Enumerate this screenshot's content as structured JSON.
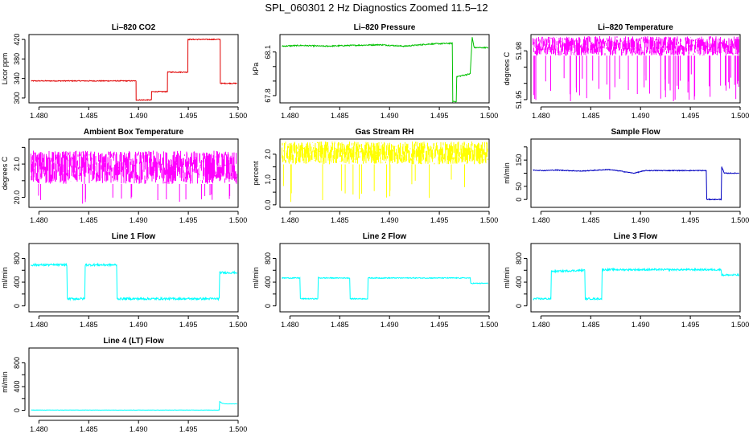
{
  "title": "SPL_060301  2 Hz Diagnostics Zoomed 11.5–12",
  "chart_data": [
    {
      "type": "line",
      "title": "Li–820 CO2",
      "xlabel": "",
      "ylabel": "Licor ppm",
      "color": "#e00000",
      "xlim": [
        1.479,
        1.5
      ],
      "ylim": [
        290,
        430
      ],
      "xticks": [
        1.48,
        1.485,
        1.49,
        1.495,
        1.5
      ],
      "xticklabels": [
        "1.480",
        "1.485",
        "1.490",
        "1.495",
        "1.500"
      ],
      "yticks": [
        300,
        340,
        380,
        420
      ],
      "yticklabels": [
        "300",
        "340",
        "380",
        "420"
      ],
      "noise": 0.9,
      "x": [
        1.4792,
        1.48975,
        1.48976,
        1.4913,
        1.49131,
        1.4929,
        1.49291,
        1.49495,
        1.49496,
        1.4982,
        1.49821,
        1.4999
      ],
      "y": [
        335,
        335,
        296,
        296,
        313,
        313,
        353,
        353,
        420,
        420,
        330,
        330
      ]
    },
    {
      "type": "line",
      "title": "Li–820 Pressure",
      "xlabel": "",
      "ylabel": "kPa",
      "color": "#00c000",
      "xlim": [
        1.479,
        1.5
      ],
      "ylim": [
        67.75,
        68.22
      ],
      "xticks": [
        1.48,
        1.485,
        1.49,
        1.495,
        1.5
      ],
      "xticklabels": [
        "1.480",
        "1.485",
        "1.490",
        "1.495",
        "1.500"
      ],
      "yticks": [
        67.8,
        67.9,
        68.0,
        68.1
      ],
      "yticklabels": [
        "67.8",
        "",
        "",
        "68.1"
      ],
      "noise": 0.004,
      "x": [
        1.4792,
        1.481,
        1.4835,
        1.486,
        1.489,
        1.4915,
        1.494,
        1.4963,
        1.49635,
        1.4967,
        1.49675,
        1.4981,
        1.4983,
        1.4985,
        1.4999
      ],
      "y": [
        68.14,
        68.145,
        68.14,
        68.145,
        68.15,
        68.14,
        68.155,
        68.16,
        67.76,
        67.76,
        67.93,
        67.95,
        68.2,
        68.13,
        68.13
      ]
    },
    {
      "type": "noise-band",
      "title": "Li–820 Temperature",
      "xlabel": "",
      "ylabel": "degrees C",
      "color": "#ff00ff",
      "xlim": [
        1.479,
        1.5
      ],
      "ylim": [
        51.948,
        51.99
      ],
      "xticks": [
        1.48,
        1.485,
        1.49,
        1.495,
        1.5
      ],
      "xticklabels": [
        "1.480",
        "1.485",
        "1.490",
        "1.495",
        "1.500"
      ],
      "yticks": [
        51.95,
        51.96,
        51.97,
        51.98
      ],
      "yticklabels": [
        "51.95",
        "",
        "",
        "51.98"
      ],
      "range": [
        1.4792,
        1.4999
      ],
      "band": [
        51.977,
        51.989
      ],
      "spike_to": 51.949,
      "spikes": 55
    },
    {
      "type": "noise-band",
      "title": "Ambient Box Temperature",
      "xlabel": "",
      "ylabel": "degrees C",
      "color": "#ff00ff",
      "xlim": [
        1.479,
        1.5
      ],
      "ylim": [
        19.7,
        21.75
      ],
      "xticks": [
        1.48,
        1.485,
        1.49,
        1.495,
        1.5
      ],
      "xticklabels": [
        "1.480",
        "1.485",
        "1.490",
        "1.495",
        "1.500"
      ],
      "yticks": [
        20.0,
        20.5,
        21.0,
        21.5
      ],
      "yticklabels": [
        "20.0",
        "",
        "21.0",
        ""
      ],
      "range": [
        1.4792,
        1.4999
      ],
      "band": [
        20.4,
        21.4
      ],
      "spike_to": 19.8,
      "spikes": 20
    },
    {
      "type": "noise-band",
      "title": "Gas Stream RH",
      "xlabel": "",
      "ylabel": "percent",
      "color": "#ffff00",
      "xlim": [
        1.479,
        1.5
      ],
      "ylim": [
        -0.1,
        2.6
      ],
      "xticks": [
        1.48,
        1.485,
        1.49,
        1.495,
        1.5
      ],
      "xticklabels": [
        "1.480",
        "1.485",
        "1.490",
        "1.495",
        "1.500"
      ],
      "yticks": [
        0.0,
        0.5,
        1.0,
        1.5,
        2.0
      ],
      "yticklabels": [
        "0.0",
        "",
        "1.0",
        "",
        "2.0"
      ],
      "range": [
        1.4792,
        1.4999
      ],
      "band": [
        1.6,
        2.5
      ],
      "spike_to": 0.1,
      "spikes": 18
    },
    {
      "type": "line",
      "title": "Sample Flow",
      "xlabel": "",
      "ylabel": "ml/min",
      "color": "#0000c0",
      "xlim": [
        1.479,
        1.5
      ],
      "ylim": [
        -30,
        230
      ],
      "xticks": [
        1.48,
        1.485,
        1.49,
        1.495,
        1.5
      ],
      "xticklabels": [
        "1.480",
        "1.485",
        "1.490",
        "1.495",
        "1.500"
      ],
      "yticks": [
        0,
        50,
        100,
        150,
        200
      ],
      "yticklabels": [
        "0",
        "50",
        "",
        "150",
        ""
      ],
      "noise": 1.5,
      "x": [
        1.4792,
        1.4803,
        1.4815,
        1.484,
        1.4868,
        1.488,
        1.4893,
        1.4905,
        1.4918,
        1.4966,
        1.49665,
        1.4981,
        1.49815,
        1.4984,
        1.4986,
        1.4999
      ],
      "y": [
        112,
        110,
        112,
        108,
        114,
        108,
        100,
        110,
        110,
        110,
        0,
        0,
        125,
        100,
        100,
        100
      ]
    },
    {
      "type": "line",
      "title": "Line 1 Flow",
      "xlabel": "",
      "ylabel": "ml/min",
      "color": "#00ffff",
      "xlim": [
        1.479,
        1.5
      ],
      "ylim": [
        -100,
        1050
      ],
      "xticks": [
        1.48,
        1.485,
        1.49,
        1.495,
        1.5
      ],
      "xticklabels": [
        "1.480",
        "1.485",
        "1.490",
        "1.495",
        "1.500"
      ],
      "yticks": [
        0,
        200,
        400,
        600,
        800
      ],
      "yticklabels": [
        "0",
        "",
        "400",
        "",
        "800"
      ],
      "noise": 18,
      "x": [
        1.4792,
        1.4828,
        1.48285,
        1.4846,
        1.48465,
        1.4878,
        1.48785,
        1.4981,
        1.49815,
        1.4999
      ],
      "y": [
        690,
        690,
        120,
        120,
        690,
        690,
        120,
        120,
        560,
        560
      ]
    },
    {
      "type": "line",
      "title": "Line 2 Flow",
      "xlabel": "",
      "ylabel": "ml/min",
      "color": "#00ffff",
      "xlim": [
        1.479,
        1.5
      ],
      "ylim": [
        -100,
        1050
      ],
      "xticks": [
        1.48,
        1.485,
        1.49,
        1.495,
        1.5
      ],
      "xticklabels": [
        "1.480",
        "1.485",
        "1.490",
        "1.495",
        "1.500"
      ],
      "yticks": [
        0,
        200,
        400,
        600,
        800
      ],
      "yticklabels": [
        "0",
        "",
        "400",
        "",
        "800"
      ],
      "noise": 8,
      "x": [
        1.4792,
        1.481,
        1.48105,
        1.4828,
        1.48285,
        1.486,
        1.48605,
        1.4878,
        1.48785,
        1.4981,
        1.49815,
        1.4999
      ],
      "y": [
        470,
        470,
        120,
        120,
        470,
        470,
        120,
        120,
        470,
        470,
        380,
        380
      ]
    },
    {
      "type": "line",
      "title": "Line 3 Flow",
      "xlabel": "",
      "ylabel": "ml/min",
      "color": "#00ffff",
      "xlim": [
        1.479,
        1.5
      ],
      "ylim": [
        -100,
        1050
      ],
      "xticks": [
        1.48,
        1.485,
        1.49,
        1.495,
        1.5
      ],
      "xticklabels": [
        "1.480",
        "1.485",
        "1.490",
        "1.495",
        "1.500"
      ],
      "yticks": [
        0,
        200,
        400,
        600,
        800
      ],
      "yticklabels": [
        "0",
        "",
        "400",
        "",
        "800"
      ],
      "noise": 15,
      "x": [
        1.4792,
        1.481,
        1.48105,
        1.4844,
        1.48445,
        1.4861,
        1.48615,
        1.4981,
        1.49815,
        1.4999
      ],
      "y": [
        120,
        120,
        580,
        600,
        120,
        120,
        610,
        610,
        520,
        520
      ]
    },
    {
      "type": "line",
      "title": "Line 4 (LT) Flow",
      "xlabel": "",
      "ylabel": "ml/min",
      "color": "#00ffff",
      "xlim": [
        1.479,
        1.5
      ],
      "ylim": [
        -100,
        1050
      ],
      "xticks": [
        1.48,
        1.485,
        1.49,
        1.495,
        1.5
      ],
      "xticklabels": [
        "1.480",
        "1.485",
        "1.490",
        "1.495",
        "1.500"
      ],
      "yticks": [
        0,
        200,
        400,
        600,
        800
      ],
      "yticklabels": [
        "0",
        "",
        "400",
        "",
        "800"
      ],
      "noise": 2,
      "x": [
        1.4792,
        1.4981,
        1.49815,
        1.4984,
        1.4987,
        1.4999
      ],
      "y": [
        5,
        5,
        150,
        120,
        110,
        110
      ]
    }
  ]
}
